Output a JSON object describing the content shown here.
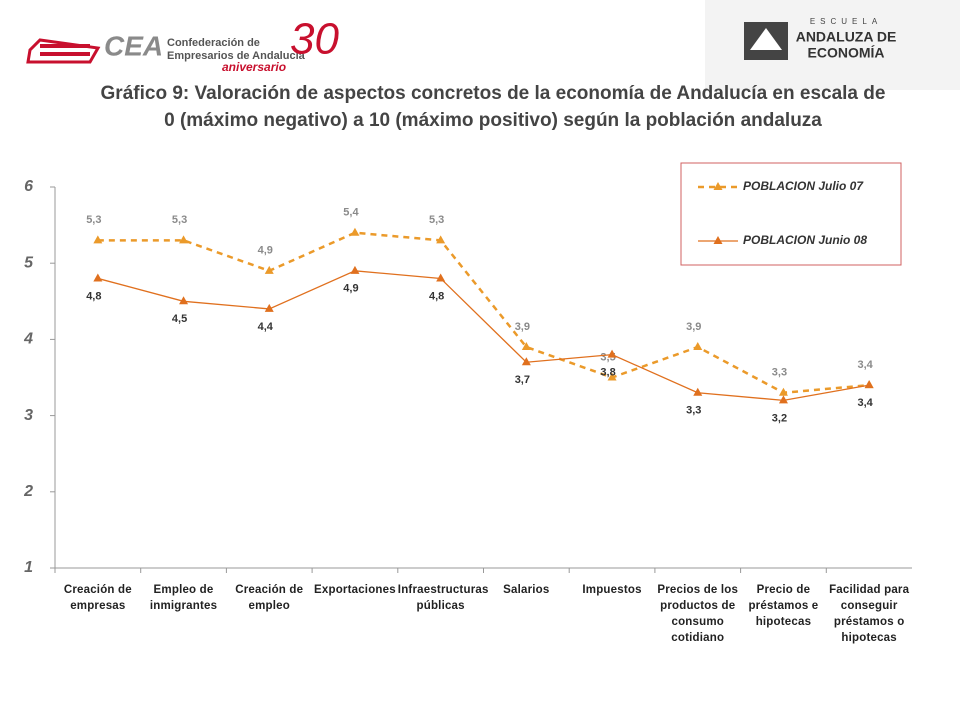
{
  "header": {
    "cea": "CEA",
    "cea_name_1": "Confederación de",
    "cea_name_2": "Empresarios de Andalucía",
    "anniversary": "aniversario",
    "anniversary_number": "30",
    "school_1": "ESCUELA",
    "school_2": "ANDALUZA DE",
    "school_3": "ECONOMÍA"
  },
  "chart_data": {
    "type": "line",
    "title": "Gráfico 9: Valoración de aspectos concretos de la economía de Andalucía en escala de 0 (máximo negativo) a 10 (máximo positivo) según la población andaluza",
    "categories": [
      "Creación de empresas",
      "Empleo de inmigrantes",
      "Creación de empleo",
      "Exportaciones",
      "Infraestructuras públicas",
      "Salarios",
      "Impuestos",
      "Precios de los productos de consumo cotidiano",
      "Precio de préstamos e hipotecas",
      "Facilidad para conseguir préstamos o hipotecas"
    ],
    "series": [
      {
        "name": "POBLACION Julio 07",
        "color": "#eb9a2a",
        "dashed": true,
        "label_color": "#8a8a8a",
        "label_side": "above",
        "values": [
          5.3,
          5.3,
          4.9,
          5.4,
          5.3,
          3.9,
          3.5,
          3.9,
          3.3,
          3.4
        ],
        "value_labels": [
          "5,3",
          "5,3",
          "4,9",
          "5,4",
          "5,3",
          "3,9",
          "3,5",
          "3,9",
          "3,3",
          "3,4"
        ]
      },
      {
        "name": "POBLACION Junio 08",
        "color": "#e0701e",
        "dashed": false,
        "label_color": "#333333",
        "label_side": "below",
        "values": [
          4.8,
          4.5,
          4.4,
          4.9,
          4.8,
          3.7,
          3.8,
          3.3,
          3.2,
          3.4
        ],
        "value_labels": [
          "4,8",
          "4,5",
          "4,4",
          "4,9",
          "4,8",
          "3,7",
          "3,8",
          "3,3",
          "3,2",
          "3,4"
        ]
      }
    ],
    "ylim": [
      1,
      6
    ],
    "yticks": [
      1,
      2,
      3,
      4,
      5,
      6
    ],
    "grid": false,
    "legend": "upper right"
  }
}
